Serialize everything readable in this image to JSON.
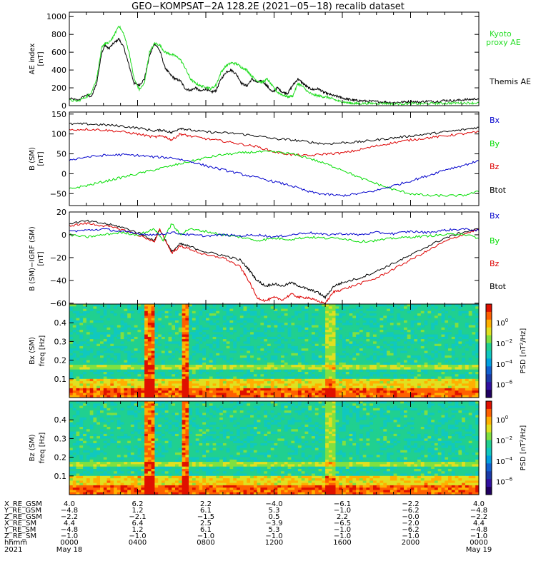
{
  "title": "GEO−KOMPSAT−2A 128.2E (2021−05−18) recalib dataset",
  "colors": {
    "black": "#000000",
    "red": "#dd0000",
    "green": "#00dd00",
    "blue": "#0000cc",
    "kyoto": "#22dd22"
  },
  "chart_data": [
    {
      "type": "line",
      "id": "ae",
      "ylabel": "AE index",
      "yunit": "[nT]",
      "ylim": [
        0,
        1050
      ],
      "yticks": [
        0,
        200,
        400,
        600,
        800,
        1000
      ],
      "grid": false,
      "xlim": [
        0,
        24
      ],
      "xlabel_hours": [
        "0000",
        "0400",
        "0800",
        "1200",
        "1600",
        "2000",
        "0000"
      ],
      "legend": [
        {
          "label": "Kyoto",
          "color": "#22dd22"
        },
        {
          "label": "proxy AE",
          "color": "#22dd22"
        },
        {
          "label": "Themis AE",
          "color": "#000000"
        }
      ],
      "series": [
        {
          "name": "Themis AE",
          "color": "#000000",
          "x": [
            0,
            0.5,
            1,
            1.3,
            1.6,
            1.9,
            2.1,
            2.3,
            2.6,
            2.9,
            3.2,
            3.5,
            3.8,
            4.1,
            4.4,
            4.7,
            5,
            5.3,
            5.6,
            5.9,
            6.2,
            6.5,
            6.8,
            7.1,
            7.4,
            7.7,
            8.0,
            8.3,
            8.6,
            8.9,
            9.2,
            9.5,
            9.8,
            10.1,
            10.4,
            10.7,
            11,
            11.3,
            11.6,
            11.9,
            12.2,
            12.5,
            12.8,
            13.1,
            13.4,
            13.7,
            14,
            14.3,
            14.6,
            14.9,
            15.2,
            15.5,
            15.8,
            16.1,
            16.4,
            16.7,
            17,
            17.5,
            18,
            18.5,
            19,
            19.5,
            20,
            20.5,
            21,
            21.5,
            22,
            22.5,
            23,
            23.5,
            24
          ],
          "y": [
            80,
            60,
            120,
            100,
            250,
            600,
            680,
            640,
            700,
            750,
            650,
            450,
            250,
            230,
            300,
            560,
            700,
            620,
            430,
            350,
            300,
            280,
            190,
            170,
            200,
            160,
            190,
            150,
            170,
            300,
            380,
            400,
            350,
            250,
            220,
            300,
            260,
            280,
            220,
            150,
            200,
            150,
            140,
            230,
            300,
            250,
            200,
            180,
            190,
            150,
            130,
            110,
            100,
            80,
            70,
            60,
            55,
            50,
            45,
            40,
            35,
            40,
            45,
            40,
            50,
            45,
            60,
            55,
            65,
            70,
            80
          ]
        },
        {
          "name": "Kyoto proxy AE",
          "color": "#22dd22",
          "x": [
            0,
            0.5,
            1,
            1.3,
            1.6,
            1.9,
            2.1,
            2.3,
            2.6,
            2.9,
            3.2,
            3.5,
            3.8,
            4.1,
            4.4,
            4.7,
            5,
            5.3,
            5.6,
            5.9,
            6.2,
            6.5,
            6.8,
            7.1,
            7.4,
            7.7,
            8.0,
            8.3,
            8.6,
            8.9,
            9.2,
            9.5,
            9.8,
            10.1,
            10.4,
            10.7,
            11,
            11.3,
            11.6,
            11.9,
            12.2,
            12.5,
            12.8,
            13.1,
            13.4,
            13.7,
            14,
            14.3,
            14.6,
            14.9,
            15.2,
            15.5,
            15.8,
            16.1,
            16.4,
            16.7,
            17,
            17.5,
            18,
            18.5,
            19,
            19.5,
            20,
            20.5,
            21,
            21.5,
            22,
            22.5,
            23,
            23.5,
            24
          ],
          "y": [
            60,
            50,
            100,
            150,
            300,
            650,
            700,
            700,
            780,
            900,
            800,
            600,
            300,
            180,
            250,
            600,
            700,
            680,
            600,
            580,
            560,
            520,
            420,
            300,
            250,
            220,
            210,
            190,
            230,
            380,
            450,
            480,
            470,
            430,
            400,
            330,
            280,
            260,
            300,
            220,
            150,
            120,
            100,
            110,
            250,
            210,
            150,
            120,
            110,
            100,
            90,
            70,
            50,
            40,
            30,
            25,
            25,
            25,
            25,
            25,
            20,
            20,
            25,
            20,
            25,
            25,
            25,
            30,
            30,
            30,
            30
          ]
        }
      ]
    },
    {
      "type": "line",
      "id": "b",
      "ylabel": "B (SM)",
      "yunit": "[nT]",
      "ylim": [
        -80,
        155
      ],
      "yticks": [
        -50,
        0,
        50,
        100,
        150
      ],
      "grid": false,
      "xlim": [
        0,
        24
      ],
      "legend": [
        {
          "label": "Bx",
          "color": "#0000cc"
        },
        {
          "label": "By",
          "color": "#00dd00"
        },
        {
          "label": "Bz",
          "color": "#dd0000"
        },
        {
          "label": "Btot",
          "color": "#000000"
        }
      ],
      "series": [
        {
          "name": "Btot",
          "color": "#000000",
          "x": [
            0,
            1,
            2,
            3,
            4,
            5,
            5.5,
            6,
            6.5,
            7,
            8,
            9,
            10,
            11,
            12,
            13,
            14,
            15,
            16,
            17,
            18,
            19,
            20,
            21,
            22,
            23,
            24
          ],
          "y": [
            125,
            125,
            123,
            120,
            115,
            108,
            110,
            103,
            115,
            110,
            105,
            103,
            100,
            95,
            88,
            85,
            80,
            75,
            78,
            80,
            85,
            90,
            95,
            100,
            105,
            110,
            117
          ]
        },
        {
          "name": "Bz",
          "color": "#dd0000",
          "x": [
            0,
            1,
            2,
            3,
            4,
            5,
            5.5,
            6,
            6.5,
            7,
            8,
            9,
            10,
            11,
            12,
            13,
            14,
            15,
            16,
            17,
            18,
            19,
            20,
            21,
            22,
            23,
            24
          ],
          "y": [
            110,
            112,
            110,
            106,
            100,
            92,
            95,
            85,
            100,
            95,
            88,
            82,
            75,
            68,
            55,
            48,
            45,
            50,
            52,
            60,
            70,
            78,
            85,
            90,
            95,
            100,
            105
          ]
        },
        {
          "name": "By",
          "color": "#00dd00",
          "x": [
            0,
            1,
            2,
            3,
            4,
            5,
            6,
            7,
            8,
            9,
            10,
            11,
            12,
            13,
            14,
            15,
            16,
            17,
            18,
            19,
            20,
            21,
            22,
            23,
            24
          ],
          "y": [
            -38,
            -30,
            -20,
            -10,
            0,
            10,
            20,
            30,
            40,
            48,
            52,
            55,
            55,
            50,
            40,
            25,
            10,
            -10,
            -25,
            -40,
            -50,
            -55,
            -55,
            -55,
            -45
          ]
        },
        {
          "name": "Bx",
          "color": "#0000cc",
          "x": [
            0,
            1,
            2,
            3,
            4,
            5,
            6,
            7,
            8,
            9,
            10,
            11,
            12,
            13,
            14,
            15,
            16,
            17,
            18,
            19,
            20,
            21,
            22,
            23,
            24
          ],
          "y": [
            35,
            42,
            46,
            48,
            46,
            42,
            40,
            32,
            20,
            10,
            0,
            -10,
            -20,
            -30,
            -45,
            -52,
            -55,
            -50,
            -42,
            -30,
            -18,
            -5,
            10,
            20,
            32
          ]
        }
      ]
    },
    {
      "type": "line",
      "id": "dbrf",
      "ylabel": "B (SM)−IGRF (SM)",
      "yunit": "[nT]",
      "ylim": [
        -62,
        20
      ],
      "yticks": [
        -60,
        -40,
        -20,
        0,
        20
      ],
      "grid": false,
      "xlim": [
        0,
        24
      ],
      "legend": [
        {
          "label": "Bx",
          "color": "#0000cc"
        },
        {
          "label": "By",
          "color": "#00dd00"
        },
        {
          "label": "Bz",
          "color": "#dd0000"
        },
        {
          "label": "Btot",
          "color": "#000000"
        }
      ],
      "series": [
        {
          "name": "Btot",
          "color": "#000000",
          "x": [
            0,
            1,
            2,
            3,
            4,
            5,
            5.3,
            6,
            6.5,
            7,
            8,
            9,
            10,
            10.5,
            11,
            11.5,
            12,
            12.5,
            13,
            13.5,
            14,
            14.5,
            15,
            15.5,
            16,
            17,
            18,
            19,
            20,
            21,
            22,
            23,
            24
          ],
          "y": [
            10,
            12,
            10,
            7,
            2,
            -5,
            5,
            -15,
            -8,
            -10,
            -15,
            -18,
            -22,
            -30,
            -40,
            -45,
            -43,
            -45,
            -42,
            -45,
            -48,
            -50,
            -55,
            -45,
            -42,
            -38,
            -32,
            -25,
            -18,
            -10,
            -3,
            2,
            5
          ]
        },
        {
          "name": "Bz",
          "color": "#dd0000",
          "x": [
            0,
            1,
            2,
            3,
            4,
            5,
            5.3,
            6,
            6.5,
            7,
            8,
            9,
            10,
            10.5,
            11,
            11.5,
            12,
            12.5,
            13,
            13.5,
            14,
            14.5,
            15,
            15.5,
            16,
            17,
            18,
            19,
            20,
            21,
            22,
            23,
            24
          ],
          "y": [
            8,
            10,
            8,
            5,
            0,
            -6,
            5,
            -16,
            -10,
            -12,
            -18,
            -20,
            -28,
            -40,
            -55,
            -58,
            -55,
            -57,
            -52,
            -55,
            -55,
            -58,
            -60,
            -50,
            -48,
            -43,
            -38,
            -30,
            -22,
            -14,
            -6,
            0,
            5
          ]
        },
        {
          "name": "By",
          "color": "#00dd00",
          "x": [
            0,
            1,
            2,
            3,
            4,
            5,
            5.5,
            6,
            6.5,
            7,
            8,
            9,
            10,
            11,
            12,
            13,
            14,
            15,
            16,
            17,
            18,
            19,
            20,
            21,
            22,
            23,
            24
          ],
          "y": [
            0,
            -2,
            0,
            2,
            0,
            5,
            -5,
            10,
            0,
            5,
            3,
            0,
            -2,
            -5,
            -3,
            -4,
            -2,
            -3,
            -3,
            -6,
            -5,
            -3,
            -2,
            -1,
            0,
            1,
            -3
          ]
        },
        {
          "name": "Bx",
          "color": "#0000cc",
          "x": [
            0,
            1,
            2,
            3,
            4,
            5,
            6,
            7,
            8,
            9,
            10,
            11,
            12,
            13,
            14,
            15,
            16,
            17,
            18,
            19,
            20,
            21,
            22,
            23,
            24
          ],
          "y": [
            3,
            4,
            5,
            3,
            1,
            0,
            2,
            0,
            -1,
            0,
            -1,
            0,
            -2,
            0,
            2,
            0,
            1,
            0,
            2,
            1,
            3,
            2,
            4,
            5,
            4
          ]
        }
      ]
    },
    {
      "type": "heatmap",
      "id": "spec_bx",
      "ylabel": "Bx (SM)",
      "yunit": "freq [Hz]",
      "ylim": [
        0,
        0.5
      ],
      "yticks": [
        0.1,
        0.2,
        0.3,
        0.4
      ],
      "colorbar": {
        "label": "PSD [nT²/Hz]",
        "ticks": [
          "10^0",
          "10^-2",
          "10^-4",
          "10^-6"
        ]
      }
    },
    {
      "type": "heatmap",
      "id": "spec_bz",
      "ylabel": "Bz (SM)",
      "yunit": "freq [Hz]",
      "ylim": [
        0,
        0.5
      ],
      "yticks": [
        0.1,
        0.2,
        0.3,
        0.4
      ],
      "colorbar": {
        "label": "PSD [nT²/Hz]",
        "ticks": [
          "10^0",
          "10^-2",
          "10^-4",
          "10^-6"
        ]
      }
    }
  ],
  "ephemeris": {
    "rows": [
      {
        "label": "X_RE_GSM",
        "values": [
          "4.0",
          "6.2",
          "2.2",
          "−4.0",
          "−6.1",
          "−2.2",
          "4.0"
        ]
      },
      {
        "label": "Y_RE_GSM",
        "values": [
          "−4.8",
          "1.2",
          "6.1",
          "5.3",
          "−1.0",
          "−6.2",
          "−4.8"
        ]
      },
      {
        "label": "Z_RE_GSM",
        "values": [
          "−2.2",
          "−2.1",
          "−1.5",
          "0.5",
          "2.2",
          "−0.0",
          "−2.2"
        ]
      },
      {
        "label": "X_RE_SM",
        "values": [
          "4.4",
          "6.4",
          "2.5",
          "−3.9",
          "−6.5",
          "−2.0",
          "4.4"
        ]
      },
      {
        "label": "Y_RE_SM",
        "values": [
          "−4.8",
          "1.2",
          "6.1",
          "5.3",
          "−1.0",
          "−6.2",
          "−4.8"
        ]
      },
      {
        "label": "Z_RE_SM",
        "values": [
          "−1.0",
          "−1.0",
          "−1.0",
          "−1.0",
          "−1.0",
          "−1.0",
          "−1.0"
        ]
      },
      {
        "label": "hhmm",
        "values": [
          "0000",
          "0400",
          "0800",
          "1200",
          "1600",
          "2000",
          "0000"
        ]
      }
    ],
    "year": "2021",
    "date_start": "May 18",
    "date_end": "May 19"
  }
}
